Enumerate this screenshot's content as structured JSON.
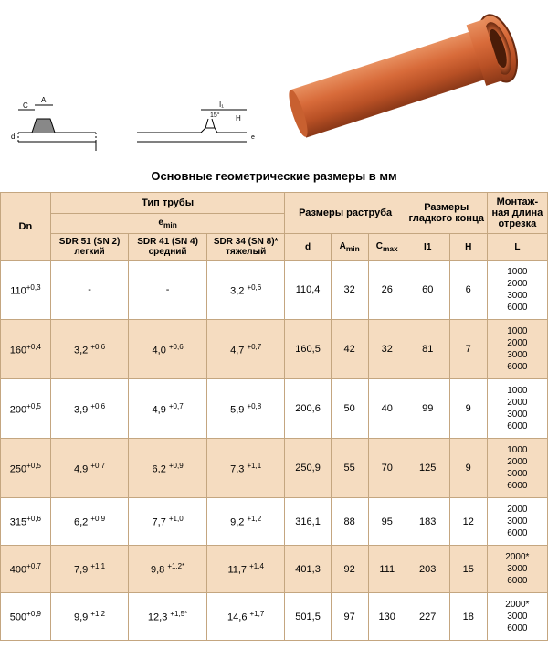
{
  "title": "Основные геометрические размеры в мм",
  "header_colors": {
    "header_bg": "#f5dcc0",
    "border": "#c4a680",
    "row_alt_bg": "#f5dcc0",
    "row_bg": "#ffffff",
    "pipe_color": "#d86b3a",
    "pipe_dark": "#a04820"
  },
  "table": {
    "type": "table",
    "columns": {
      "dn": "Dn",
      "pipe_type": "Тип трубы",
      "emin": "e",
      "emin_sub": "min",
      "sdr51": "SDR 51 (SN 2) легкий",
      "sdr41": "SDR 41 (SN 4) средний",
      "sdr34": "SDR 34 (SN 8)* тяжелый",
      "socket": "Размеры раструба",
      "d": "d",
      "amin": "A",
      "amin_sub": "min",
      "cmax": "C",
      "cmax_sub": "max",
      "smooth_end": "Размеры гладкого конца",
      "i1": "I1",
      "h": "H",
      "mount_len": "Монтаж-ная длина отрезка",
      "l": "L"
    },
    "rows": [
      {
        "dn": "110",
        "dn_sup": "+0,3",
        "sdr51": "-",
        "sdr41": "-",
        "sdr34": "3,2",
        "sdr34_sup": "+0,6",
        "d": "110,4",
        "amin": "32",
        "cmax": "26",
        "i1": "60",
        "h": "6",
        "l": "1000\n2000\n3000\n6000"
      },
      {
        "dn": "160",
        "dn_sup": "+0,4",
        "sdr51": "3,2",
        "sdr51_sup": "+0,6",
        "sdr41": "4,0",
        "sdr41_sup": "+0,6",
        "sdr34": "4,7",
        "sdr34_sup": "+0,7",
        "d": "160,5",
        "amin": "42",
        "cmax": "32",
        "i1": "81",
        "h": "7",
        "l": "1000\n2000\n3000\n6000"
      },
      {
        "dn": "200",
        "dn_sup": "+0,5",
        "sdr51": "3,9",
        "sdr51_sup": "+0,6",
        "sdr41": "4,9",
        "sdr41_sup": "+0,7",
        "sdr34": "5,9",
        "sdr34_sup": "+0,8",
        "d": "200,6",
        "amin": "50",
        "cmax": "40",
        "i1": "99",
        "h": "9",
        "l": "1000\n2000\n3000\n6000"
      },
      {
        "dn": "250",
        "dn_sup": "+0,5",
        "sdr51": "4,9",
        "sdr51_sup": "+0,7",
        "sdr41": "6,2",
        "sdr41_sup": "+0,9",
        "sdr34": "7,3",
        "sdr34_sup": "+1,1",
        "d": "250,9",
        "amin": "55",
        "cmax": "70",
        "i1": "125",
        "h": "9",
        "l": "1000\n2000\n3000\n6000"
      },
      {
        "dn": "315",
        "dn_sup": "+0,6",
        "sdr51": "6,2",
        "sdr51_sup": "+0,9",
        "sdr41": "7,7",
        "sdr41_sup": "+1,0",
        "sdr34": "9,2",
        "sdr34_sup": "+1,2",
        "d": "316,1",
        "amin": "88",
        "cmax": "95",
        "i1": "183",
        "h": "12",
        "l": "2000\n3000\n6000"
      },
      {
        "dn": "400",
        "dn_sup": "+0,7",
        "sdr51": "7,9",
        "sdr51_sup": "+1,1",
        "sdr41": "9,8",
        "sdr41_sup": "+1,2*",
        "sdr34": "11,7",
        "sdr34_sup": "+1,4",
        "d": "401,3",
        "amin": "92",
        "cmax": "111",
        "i1": "203",
        "h": "15",
        "l": "2000*\n3000\n6000"
      },
      {
        "dn": "500",
        "dn_sup": "+0,9",
        "sdr51": "9,9",
        "sdr51_sup": "+1,2",
        "sdr41": "12,3",
        "sdr41_sup": "+1,5*",
        "sdr34": "14,6",
        "sdr34_sup": "+1,7",
        "d": "501,5",
        "amin": "97",
        "cmax": "130",
        "i1": "227",
        "h": "18",
        "l": "2000*\n3000\n6000"
      }
    ]
  }
}
